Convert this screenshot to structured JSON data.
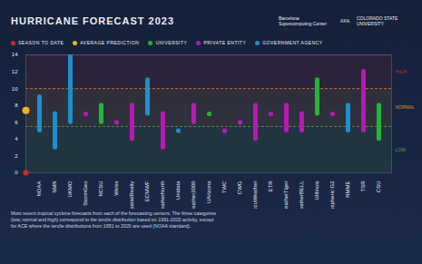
{
  "chart_data": {
    "type": "range",
    "title": "HURRICANE FORECAST 2023",
    "logos": [
      "Barcelona Supercomputing Center",
      "AXA",
      "COLORADO STATE UNIVERSITY"
    ],
    "legend_items": [
      {
        "name": "SEASON TO DATE",
        "color": "#d9261f"
      },
      {
        "name": "AVERAGE PREDICTION",
        "color": "#f2b324"
      },
      {
        "name": "UNIVERSITY",
        "color": "#25b535"
      },
      {
        "name": "PRIVATE ENTITY",
        "color": "#b51ab5"
      },
      {
        "name": "GOVERNMENT AGENCY",
        "color": "#1d8fcb"
      }
    ],
    "categories": [
      "NOAA",
      "SMN",
      "UKMO",
      "StormGeo",
      "NCSU",
      "Weiss",
      "SpatialRealty",
      "ECMWF",
      "WeatherNorth",
      "Unidata",
      "Weather2000",
      "UArizona",
      "TWC",
      "CWG",
      "AccuWeather",
      "ETR",
      "WeatherTiger",
      "WeatherBELL",
      "UIllinois",
      "Atmospheric G2",
      "NMME",
      "TSR",
      "CSU"
    ],
    "low": [
      5,
      3,
      6,
      7,
      6,
      6,
      4,
      7,
      3,
      5,
      6,
      7,
      5,
      6,
      4,
      7,
      5,
      5,
      7,
      7,
      5,
      5,
      4
    ],
    "high": [
      9,
      7,
      14,
      7,
      8,
      6,
      8,
      11,
      7,
      5,
      8,
      7,
      5,
      6,
      8,
      7,
      8,
      7,
      11,
      7,
      8,
      12,
      8
    ],
    "entity": [
      "GOVERNMENT AGENCY",
      "GOVERNMENT AGENCY",
      "GOVERNMENT AGENCY",
      "PRIVATE ENTITY",
      "UNIVERSITY",
      "PRIVATE ENTITY",
      "PRIVATE ENTITY",
      "GOVERNMENT AGENCY",
      "PRIVATE ENTITY",
      "GOVERNMENT AGENCY",
      "PRIVATE ENTITY",
      "UNIVERSITY",
      "PRIVATE ENTITY",
      "PRIVATE ENTITY",
      "PRIVATE ENTITY",
      "PRIVATE ENTITY",
      "PRIVATE ENTITY",
      "PRIVATE ENTITY",
      "UNIVERSITY",
      "PRIVATE ENTITY",
      "GOVERNMENT AGENCY",
      "PRIVATE ENTITY",
      "UNIVERSITY"
    ],
    "season_to_date": 0,
    "average_prediction": 7.4,
    "bands": [
      {
        "label": "LOW",
        "from": 0,
        "to": 5.5,
        "color": "#5fa63a"
      },
      {
        "label": "NORMAL",
        "from": 5.5,
        "to": 10,
        "color": "#e08a2a"
      },
      {
        "label": "HIGH",
        "from": 10,
        "to": 14,
        "color": "#c8282a"
      }
    ],
    "ylim": [
      0,
      14
    ],
    "yticks": [
      0,
      2,
      4,
      6,
      8,
      10,
      12,
      14
    ],
    "caption": "Most recent tropical cyclone forecasts from each of the forecasting centers. The three categories (low, normal and high) correspond to the tercile distribution based on 1991-2020 activity, except for ACE where the tercile distributions from 1951 to 2020 are used (NOAA standard)."
  }
}
